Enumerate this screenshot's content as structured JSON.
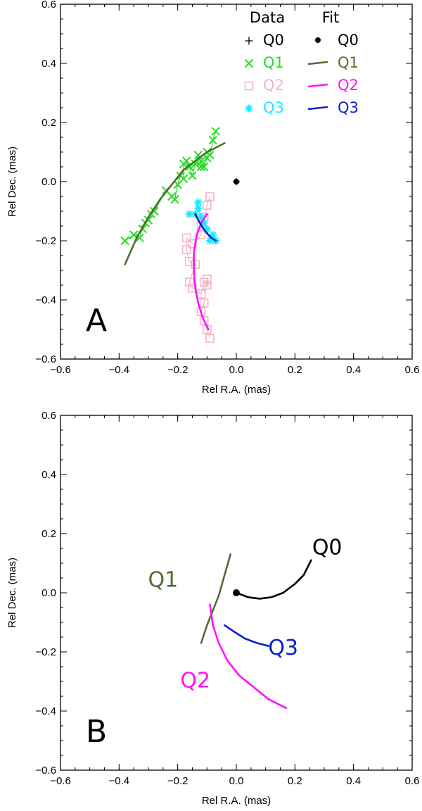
{
  "chart_data": [
    {
      "type": "scatter",
      "panel": "A",
      "xlabel": "Rel R.A. (mas)",
      "ylabel": "Rel Dec. (mas)",
      "xlim": [
        -0.6,
        0.6
      ],
      "ylim": [
        -0.6,
        0.6
      ],
      "xticks": [
        "−0.6",
        "−0.4",
        "−0.2",
        "0.0",
        "0.2",
        "0.4",
        "0.6"
      ],
      "yticks": [
        "−0.6",
        "−0.4",
        "−0.2",
        "0.0",
        "0.2",
        "0.4",
        "0.6"
      ],
      "legend": {
        "placement": "top-right",
        "data_header": "Data",
        "fit_header": "Fit",
        "entries": [
          {
            "label": "Q0",
            "color": "#000000",
            "data_marker": "plus",
            "fit_marker": "dot"
          },
          {
            "label": "Q1",
            "color": "#22dd22",
            "fit_color": "#556b2f",
            "data_marker": "x",
            "fit_marker": "line"
          },
          {
            "label": "Q2",
            "color": "#f4b6c2",
            "fit_color": "#ff10ff",
            "data_marker": "square",
            "fit_marker": "line"
          },
          {
            "label": "Q3",
            "color": "#20e8ff",
            "fit_color": "#0a1fcf",
            "data_marker": "asterisk",
            "fit_marker": "line"
          }
        ]
      },
      "series": [
        {
          "name": "Q0 data",
          "marker": "plus",
          "color": "#000000",
          "x": [
            0.0
          ],
          "y": [
            0.0
          ],
          "xerr": 0.012,
          "yerr": 0.012
        },
        {
          "name": "Q0 fit",
          "marker": "dot",
          "color": "#000000",
          "x": [
            0.0
          ],
          "y": [
            0.0
          ]
        },
        {
          "name": "Q1 data",
          "marker": "x",
          "color": "#22dd22",
          "x": [
            -0.38,
            -0.35,
            -0.33,
            -0.32,
            -0.31,
            -0.3,
            -0.29,
            -0.28,
            -0.24,
            -0.22,
            -0.21,
            -0.2,
            -0.19,
            -0.18,
            -0.18,
            -0.17,
            -0.16,
            -0.15,
            -0.14,
            -0.13,
            -0.12,
            -0.12,
            -0.11,
            -0.1,
            -0.1,
            -0.09,
            -0.08,
            -0.07
          ],
          "y": [
            -0.2,
            -0.18,
            -0.19,
            -0.16,
            -0.14,
            -0.13,
            -0.11,
            -0.1,
            -0.03,
            -0.05,
            -0.06,
            -0.01,
            0.02,
            0.01,
            0.06,
            0.07,
            0.05,
            0.02,
            0.06,
            0.09,
            0.07,
            0.05,
            0.05,
            0.08,
            0.1,
            0.09,
            0.14,
            0.17
          ]
        },
        {
          "name": "Q2 data",
          "marker": "square",
          "color": "#f4b6c2",
          "x": [
            -0.09,
            -0.1,
            -0.11,
            -0.12,
            -0.12,
            -0.15,
            -0.17,
            -0.17,
            -0.16,
            -0.14,
            -0.16,
            -0.15,
            -0.12,
            -0.11,
            -0.1,
            -0.1,
            -0.11,
            -0.12,
            -0.11,
            -0.1,
            -0.09
          ],
          "y": [
            -0.05,
            -0.08,
            -0.12,
            -0.15,
            -0.18,
            -0.21,
            -0.19,
            -0.23,
            -0.27,
            -0.28,
            -0.34,
            -0.36,
            -0.38,
            -0.34,
            -0.35,
            -0.33,
            -0.41,
            -0.44,
            -0.47,
            -0.5,
            -0.53
          ]
        },
        {
          "name": "Q3 data",
          "marker": "asterisk",
          "color": "#20e8ff",
          "x": [
            -0.16,
            -0.14,
            -0.13,
            -0.13,
            -0.12,
            -0.11,
            -0.1,
            -0.09,
            -0.08,
            -0.07
          ],
          "y": [
            -0.11,
            -0.11,
            -0.07,
            -0.09,
            -0.12,
            -0.14,
            -0.16,
            -0.2,
            -0.18,
            -0.2
          ]
        },
        {
          "name": "Q1 fit",
          "marker": "line",
          "color": "#556b2f",
          "x": [
            -0.38,
            -0.34,
            -0.3,
            -0.26,
            -0.22,
            -0.18,
            -0.14,
            -0.1,
            -0.06,
            -0.04
          ],
          "y": [
            -0.28,
            -0.19,
            -0.12,
            -0.06,
            -0.01,
            0.04,
            0.07,
            0.1,
            0.12,
            0.13
          ]
        },
        {
          "name": "Q2 fit",
          "marker": "line",
          "color": "#ff10ff",
          "x": [
            -0.1,
            -0.12,
            -0.135,
            -0.145,
            -0.145,
            -0.14,
            -0.13,
            -0.115,
            -0.095
          ],
          "y": [
            -0.11,
            -0.14,
            -0.18,
            -0.24,
            -0.3,
            -0.36,
            -0.41,
            -0.46,
            -0.5
          ]
        },
        {
          "name": "Q3 fit",
          "marker": "line",
          "color": "#0a1fcf",
          "x": [
            -0.14,
            -0.13,
            -0.115,
            -0.1,
            -0.085,
            -0.07
          ],
          "y": [
            -0.11,
            -0.13,
            -0.155,
            -0.175,
            -0.19,
            -0.2
          ]
        }
      ]
    },
    {
      "type": "line",
      "panel": "B",
      "xlabel": "Rel R.A. (mas)",
      "ylabel": "Rel Dec. (mas)",
      "xlim": [
        -0.6,
        0.6
      ],
      "ylim": [
        -0.6,
        0.6
      ],
      "xticks": [
        "−0.6",
        "−0.4",
        "−0.2",
        "0.0",
        "0.2",
        "0.4",
        "0.6"
      ],
      "yticks": [
        "−0.6",
        "−0.4",
        "−0.2",
        "0.0",
        "0.2",
        "0.4",
        "0.6"
      ],
      "series": [
        {
          "name": "Q0",
          "color": "#000000",
          "x": [
            0.0,
            0.04,
            0.08,
            0.12,
            0.16,
            0.2,
            0.23,
            0.255
          ],
          "y": [
            0.0,
            -0.015,
            -0.02,
            -0.015,
            0.0,
            0.03,
            0.06,
            0.11
          ]
        },
        {
          "name": "Q1",
          "color": "#556b2f",
          "x": [
            -0.02,
            -0.04,
            -0.06,
            -0.08,
            -0.1,
            -0.12
          ],
          "y": [
            0.13,
            0.06,
            -0.01,
            -0.06,
            -0.11,
            -0.17
          ]
        },
        {
          "name": "Q2",
          "color": "#ff10ff",
          "x": [
            -0.09,
            -0.08,
            -0.06,
            -0.03,
            0.01,
            0.06,
            0.11,
            0.17
          ],
          "y": [
            -0.04,
            -0.11,
            -0.17,
            -0.23,
            -0.28,
            -0.32,
            -0.36,
            -0.39
          ]
        },
        {
          "name": "Q3",
          "color": "#0a1fcf",
          "x": [
            -0.04,
            -0.01,
            0.03,
            0.07,
            0.11
          ],
          "y": [
            -0.11,
            -0.13,
            -0.155,
            -0.17,
            -0.18
          ]
        }
      ],
      "origin_dot": {
        "x": 0.0,
        "y": 0.0
      },
      "curve_labels": [
        {
          "text": "Q0",
          "x": 0.31,
          "y": 0.13,
          "color": "#000000"
        },
        {
          "text": "Q1",
          "x": -0.25,
          "y": 0.02,
          "color": "#556b2f"
        },
        {
          "text": "Q2",
          "x": -0.14,
          "y": -0.32,
          "color": "#ff10ff"
        },
        {
          "text": "Q3",
          "x": 0.16,
          "y": -0.21,
          "color": "#0a1fcf"
        }
      ]
    }
  ]
}
